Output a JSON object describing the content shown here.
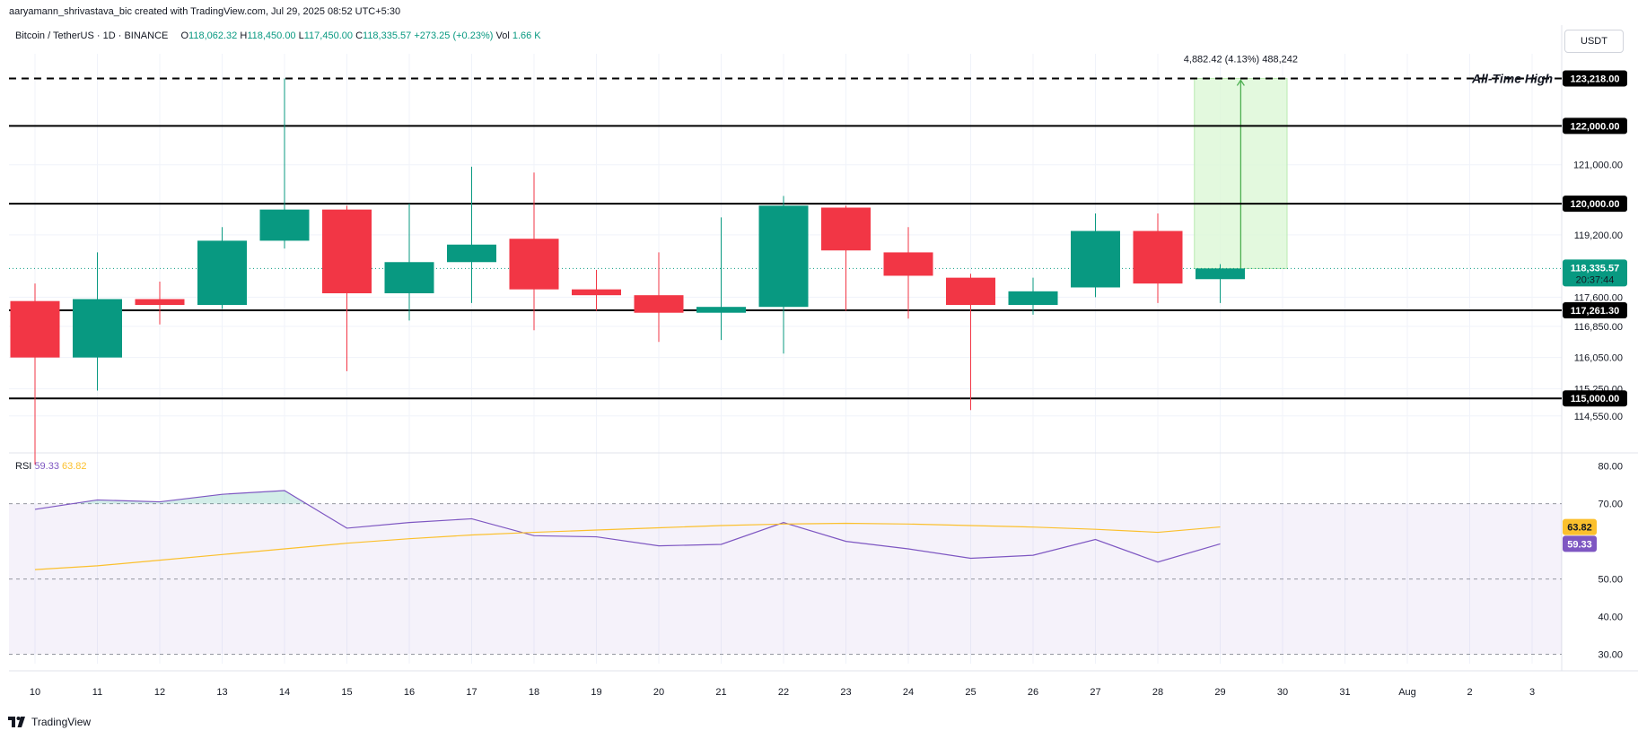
{
  "header": {
    "attribution": "aaryamann_shrivastava_bic created with TradingView.com, Jul 29, 2025 08:52 UTC+5:30"
  },
  "legend": {
    "symbol": "Bitcoin / TetherUS · 1D · BINANCE",
    "open_label": "O",
    "open": "118,062.32",
    "high_label": "H",
    "high": "118,450.00",
    "low_label": "L",
    "low": "117,450.00",
    "close_label": "C",
    "close": "118,335.57",
    "change": "+273.25 (+0.23%)",
    "vol_label": "Vol",
    "vol": "1.66 K"
  },
  "currency": "USDT",
  "brand": "TradingView",
  "colors": {
    "up": "#089981",
    "down": "#f23645",
    "rsi": "#7e57c2",
    "rsi_ma": "#fbc02d",
    "measure": "#4caf50",
    "measure_fill": "#dcf8d6",
    "level": "#000000",
    "grid": "#f0f3fa"
  },
  "chart_data": [
    {
      "type": "candlestick",
      "title": "Bitcoin / TetherUS · 1D · BINANCE",
      "x": [
        "10",
        "11",
        "12",
        "13",
        "14",
        "15",
        "16",
        "17",
        "18",
        "19",
        "20",
        "21",
        "22",
        "23",
        "24",
        "25",
        "26",
        "27",
        "28",
        "29"
      ],
      "x_ticks": [
        "10",
        "11",
        "12",
        "13",
        "14",
        "15",
        "16",
        "17",
        "18",
        "19",
        "20",
        "21",
        "22",
        "23",
        "24",
        "25",
        "26",
        "27",
        "28",
        "29",
        "30",
        "31",
        "Aug",
        "2",
        "3"
      ],
      "ohlc": [
        [
          117500,
          117950,
          113300,
          116050
        ],
        [
          116050,
          118750,
          115200,
          117550
        ],
        [
          117550,
          118000,
          116900,
          117400
        ],
        [
          117400,
          119400,
          117300,
          119050
        ],
        [
          119050,
          123218,
          118850,
          119850
        ],
        [
          119850,
          119950,
          115700,
          117700
        ],
        [
          117700,
          120000,
          117000,
          118500
        ],
        [
          118500,
          120950,
          117450,
          118950
        ],
        [
          119100,
          120800,
          116750,
          117800
        ],
        [
          117800,
          118300,
          117250,
          117650
        ],
        [
          117650,
          118750,
          116450,
          117200
        ],
        [
          117200,
          119650,
          116500,
          117350
        ],
        [
          117350,
          120200,
          116150,
          119950
        ],
        [
          119900,
          119950,
          117250,
          118800
        ],
        [
          118750,
          119400,
          117050,
          118150
        ],
        [
          118100,
          118200,
          114700,
          117400
        ],
        [
          117400,
          118100,
          117150,
          117750
        ],
        [
          117850,
          119750,
          117600,
          119300
        ],
        [
          119300,
          119750,
          117450,
          117950
        ],
        [
          118062.32,
          118450,
          117450,
          118335.57
        ]
      ],
      "y_ticks": [
        "121,000.00",
        "119,200.00",
        "117,600.00",
        "116,850.00",
        "116,050.00",
        "115,250.00",
        "114,550.00"
      ],
      "y_tick_values": [
        121000,
        119200,
        117600,
        116850,
        116050,
        115250,
        114550
      ],
      "ylim": [
        113600,
        123850
      ],
      "levels": [
        {
          "value": 123218,
          "label": "123,218.00",
          "style": "dashed",
          "note": "All-Time High"
        },
        {
          "value": 122000,
          "label": "122,000.00",
          "style": "solid"
        },
        {
          "value": 120000,
          "label": "120,000.00",
          "style": "solid"
        },
        {
          "value": 117261.3,
          "label": "117,261.30",
          "style": "solid"
        },
        {
          "value": 115000,
          "label": "115,000.00",
          "style": "solid"
        }
      ],
      "last_price": {
        "value": 118335.57,
        "label": "118,335.57",
        "countdown": "20:37:44"
      },
      "measure": {
        "from_x": "29",
        "to_x": "30",
        "from": 118335.57,
        "to": 123218,
        "label": "4,882.42 (4.13%) 488,242"
      }
    },
    {
      "type": "line",
      "title": "RSI",
      "x": [
        "10",
        "11",
        "12",
        "13",
        "14",
        "15",
        "16",
        "17",
        "18",
        "19",
        "20",
        "21",
        "22",
        "23",
        "24",
        "25",
        "26",
        "27",
        "28",
        "29"
      ],
      "series": [
        {
          "name": "RSI",
          "value_label": "59.33",
          "values": [
            68.5,
            71,
            70.5,
            72.5,
            73.5,
            63.5,
            65,
            66,
            61.5,
            61.2,
            58.8,
            59.2,
            65,
            60,
            58,
            55.5,
            56.3,
            60.5,
            54.5,
            59.33
          ]
        },
        {
          "name": "RSI MA",
          "value_label": "63.82",
          "values": [
            52.5,
            53.5,
            55,
            56.5,
            58,
            59.5,
            60.7,
            61.7,
            62.4,
            63,
            63.6,
            64.2,
            64.6,
            64.8,
            64.6,
            64.2,
            63.8,
            63.2,
            62.4,
            63.82
          ]
        }
      ],
      "y_ticks": [
        "80.00",
        "70.00",
        "50.00",
        "40.00",
        "30.00"
      ],
      "y_tick_values": [
        80,
        70,
        50,
        40,
        30
      ],
      "ylim": [
        27.5,
        83.5
      ],
      "band": [
        30,
        70
      ]
    }
  ]
}
